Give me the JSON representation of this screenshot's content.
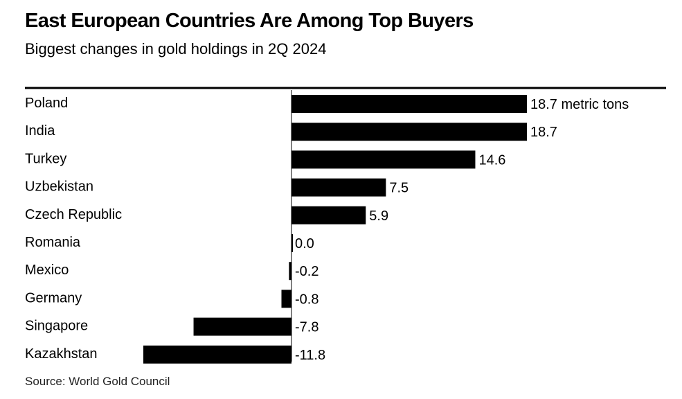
{
  "title": "East European Countries Are Among Top Buyers",
  "subtitle": "Biggest changes in gold holdings in 2Q 2024",
  "source": "Source: World Gold Council",
  "colors": {
    "bar": "#000000",
    "axis": "#000000",
    "text": "#000000"
  },
  "chart_data": {
    "type": "bar",
    "orientation": "horizontal",
    "categories": [
      "Poland",
      "India",
      "Turkey",
      "Uzbekistan",
      "Czech Republic",
      "Romania",
      "Mexico",
      "Germany",
      "Singapore",
      "Kazakhstan"
    ],
    "values": [
      18.7,
      18.7,
      14.6,
      7.5,
      5.9,
      0.0,
      -0.2,
      -0.8,
      -7.8,
      -11.8
    ],
    "value_labels": [
      "18.7 metric tons",
      "18.7",
      "14.6",
      "7.5",
      "5.9",
      "0.0",
      "-0.2",
      "-0.8",
      "-7.8",
      "-11.8"
    ],
    "xlim": [
      -11.8,
      18.7
    ],
    "unit": "metric tons",
    "grid": false,
    "legend": "none"
  }
}
